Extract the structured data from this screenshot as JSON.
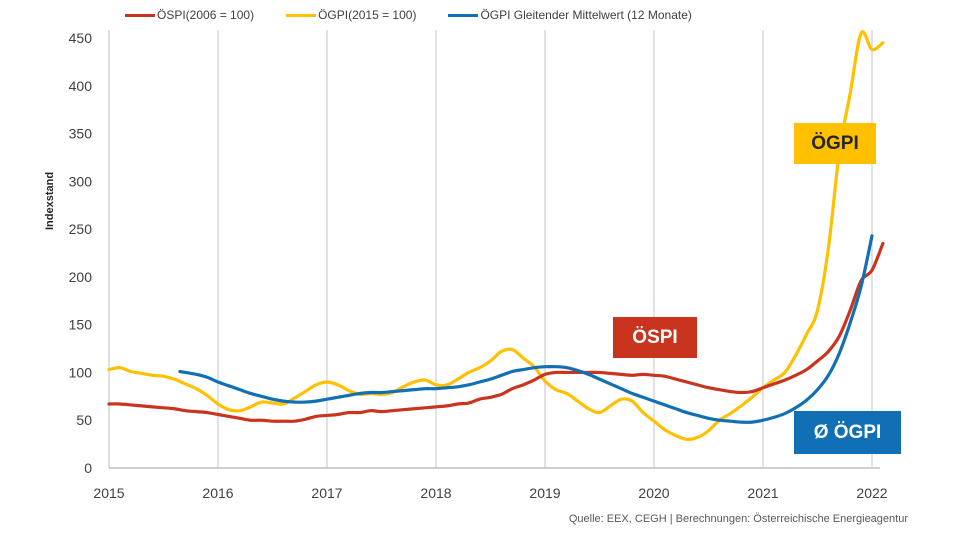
{
  "chart_data": {
    "type": "line",
    "xlim": [
      2015,
      2022
    ],
    "ylim": [
      0,
      450
    ],
    "ylabel": "Indexstand",
    "x_ticks": [
      "2015",
      "2016",
      "2017",
      "2018",
      "2019",
      "2020",
      "2021",
      "2022"
    ],
    "y_ticks": [
      "0",
      "50",
      "100",
      "150",
      "200",
      "250",
      "300",
      "350",
      "400",
      "450"
    ],
    "grid": "vertical at year ticks",
    "legend_position": "top",
    "series": [
      {
        "name": "ÖSPI(2006 = 100)",
        "color": "#C9341E",
        "label": "ÖSPI",
        "points": [
          [
            2015.0,
            67
          ],
          [
            2015.1,
            67
          ],
          [
            2015.2,
            66
          ],
          [
            2015.3,
            65
          ],
          [
            2015.4,
            64
          ],
          [
            2015.5,
            63
          ],
          [
            2015.6,
            62
          ],
          [
            2015.7,
            60
          ],
          [
            2015.8,
            59
          ],
          [
            2015.9,
            58
          ],
          [
            2016.0,
            56
          ],
          [
            2016.1,
            54
          ],
          [
            2016.2,
            52
          ],
          [
            2016.3,
            50
          ],
          [
            2016.4,
            50
          ],
          [
            2016.5,
            49
          ],
          [
            2016.6,
            49
          ],
          [
            2016.7,
            49
          ],
          [
            2016.8,
            51
          ],
          [
            2016.9,
            54
          ],
          [
            2017.0,
            55
          ],
          [
            2017.1,
            56
          ],
          [
            2017.2,
            58
          ],
          [
            2017.3,
            58
          ],
          [
            2017.4,
            60
          ],
          [
            2017.5,
            59
          ],
          [
            2017.6,
            60
          ],
          [
            2017.7,
            61
          ],
          [
            2017.8,
            62
          ],
          [
            2017.9,
            63
          ],
          [
            2018.0,
            64
          ],
          [
            2018.1,
            65
          ],
          [
            2018.2,
            67
          ],
          [
            2018.3,
            68
          ],
          [
            2018.4,
            72
          ],
          [
            2018.5,
            74
          ],
          [
            2018.6,
            77
          ],
          [
            2018.7,
            83
          ],
          [
            2018.8,
            87
          ],
          [
            2018.9,
            92
          ],
          [
            2019.0,
            98
          ],
          [
            2019.1,
            100
          ],
          [
            2019.2,
            100
          ],
          [
            2019.3,
            100
          ],
          [
            2019.4,
            100
          ],
          [
            2019.5,
            100
          ],
          [
            2019.6,
            99
          ],
          [
            2019.7,
            98
          ],
          [
            2019.8,
            97
          ],
          [
            2019.9,
            98
          ],
          [
            2020.0,
            97
          ],
          [
            2020.1,
            96
          ],
          [
            2020.2,
            93
          ],
          [
            2020.3,
            90
          ],
          [
            2020.4,
            87
          ],
          [
            2020.5,
            84
          ],
          [
            2020.6,
            82
          ],
          [
            2020.7,
            80
          ],
          [
            2020.8,
            79
          ],
          [
            2020.9,
            80
          ],
          [
            2021.0,
            84
          ],
          [
            2021.1,
            88
          ],
          [
            2021.2,
            92
          ],
          [
            2021.3,
            97
          ],
          [
            2021.4,
            103
          ],
          [
            2021.5,
            112
          ],
          [
            2021.6,
            122
          ],
          [
            2021.7,
            138
          ],
          [
            2021.8,
            165
          ],
          [
            2021.9,
            196
          ],
          [
            2022.0,
            207
          ],
          [
            2022.1,
            235
          ]
        ]
      },
      {
        "name": "ÖGPI(2015 = 100)",
        "color": "#FFC000",
        "label": "ÖGPI",
        "points": [
          [
            2015.0,
            103
          ],
          [
            2015.1,
            105
          ],
          [
            2015.2,
            101
          ],
          [
            2015.3,
            99
          ],
          [
            2015.4,
            97
          ],
          [
            2015.5,
            96
          ],
          [
            2015.6,
            93
          ],
          [
            2015.7,
            88
          ],
          [
            2015.8,
            83
          ],
          [
            2015.9,
            76
          ],
          [
            2016.0,
            67
          ],
          [
            2016.1,
            61
          ],
          [
            2016.2,
            60
          ],
          [
            2016.3,
            64
          ],
          [
            2016.4,
            69
          ],
          [
            2016.5,
            68
          ],
          [
            2016.6,
            67
          ],
          [
            2016.7,
            73
          ],
          [
            2016.8,
            80
          ],
          [
            2016.9,
            87
          ],
          [
            2017.0,
            90
          ],
          [
            2017.1,
            87
          ],
          [
            2017.2,
            81
          ],
          [
            2017.3,
            77
          ],
          [
            2017.4,
            78
          ],
          [
            2017.5,
            77
          ],
          [
            2017.6,
            79
          ],
          [
            2017.7,
            85
          ],
          [
            2017.8,
            90
          ],
          [
            2017.9,
            92
          ],
          [
            2018.0,
            87
          ],
          [
            2018.1,
            87
          ],
          [
            2018.2,
            93
          ],
          [
            2018.3,
            100
          ],
          [
            2018.4,
            105
          ],
          [
            2018.5,
            112
          ],
          [
            2018.6,
            122
          ],
          [
            2018.7,
            124
          ],
          [
            2018.8,
            115
          ],
          [
            2018.9,
            106
          ],
          [
            2019.0,
            91
          ],
          [
            2019.1,
            82
          ],
          [
            2019.2,
            78
          ],
          [
            2019.3,
            70
          ],
          [
            2019.4,
            62
          ],
          [
            2019.5,
            58
          ],
          [
            2019.6,
            65
          ],
          [
            2019.7,
            72
          ],
          [
            2019.8,
            70
          ],
          [
            2019.9,
            58
          ],
          [
            2020.0,
            49
          ],
          [
            2020.1,
            40
          ],
          [
            2020.2,
            34
          ],
          [
            2020.3,
            30
          ],
          [
            2020.4,
            32
          ],
          [
            2020.5,
            39
          ],
          [
            2020.6,
            50
          ],
          [
            2020.7,
            57
          ],
          [
            2020.8,
            65
          ],
          [
            2020.9,
            74
          ],
          [
            2021.0,
            84
          ],
          [
            2021.1,
            92
          ],
          [
            2021.2,
            100
          ],
          [
            2021.3,
            118
          ],
          [
            2021.4,
            140
          ],
          [
            2021.5,
            165
          ],
          [
            2021.6,
            230
          ],
          [
            2021.7,
            330
          ],
          [
            2021.8,
            392
          ],
          [
            2021.9,
            455
          ],
          [
            2022.0,
            438
          ],
          [
            2022.1,
            445
          ]
        ]
      },
      {
        "name": "ÖGPI Gleitender Mittelwert (12 Monate)",
        "color": "#1170B5",
        "label": "Ø ÖGPI",
        "points": [
          [
            2015.65,
            101
          ],
          [
            2015.8,
            98
          ],
          [
            2015.9,
            95
          ],
          [
            2016.0,
            90
          ],
          [
            2016.1,
            86
          ],
          [
            2016.2,
            82
          ],
          [
            2016.3,
            78
          ],
          [
            2016.4,
            75
          ],
          [
            2016.5,
            72
          ],
          [
            2016.6,
            70
          ],
          [
            2016.7,
            69
          ],
          [
            2016.8,
            69
          ],
          [
            2016.9,
            70
          ],
          [
            2017.0,
            72
          ],
          [
            2017.1,
            74
          ],
          [
            2017.2,
            76
          ],
          [
            2017.3,
            78
          ],
          [
            2017.4,
            79
          ],
          [
            2017.5,
            79
          ],
          [
            2017.6,
            80
          ],
          [
            2017.7,
            81
          ],
          [
            2017.8,
            82
          ],
          [
            2017.9,
            83
          ],
          [
            2018.0,
            83
          ],
          [
            2018.1,
            84
          ],
          [
            2018.2,
            85
          ],
          [
            2018.3,
            87
          ],
          [
            2018.4,
            90
          ],
          [
            2018.5,
            93
          ],
          [
            2018.6,
            97
          ],
          [
            2018.7,
            101
          ],
          [
            2018.8,
            103
          ],
          [
            2018.9,
            105
          ],
          [
            2019.0,
            106
          ],
          [
            2019.1,
            106
          ],
          [
            2019.2,
            105
          ],
          [
            2019.3,
            102
          ],
          [
            2019.4,
            98
          ],
          [
            2019.5,
            93
          ],
          [
            2019.6,
            88
          ],
          [
            2019.7,
            83
          ],
          [
            2019.8,
            78
          ],
          [
            2019.9,
            74
          ],
          [
            2020.0,
            70
          ],
          [
            2020.1,
            66
          ],
          [
            2020.2,
            62
          ],
          [
            2020.3,
            58
          ],
          [
            2020.4,
            55
          ],
          [
            2020.5,
            52
          ],
          [
            2020.6,
            50
          ],
          [
            2020.7,
            49
          ],
          [
            2020.8,
            48
          ],
          [
            2020.9,
            48
          ],
          [
            2021.0,
            50
          ],
          [
            2021.1,
            53
          ],
          [
            2021.2,
            57
          ],
          [
            2021.3,
            63
          ],
          [
            2021.4,
            71
          ],
          [
            2021.5,
            82
          ],
          [
            2021.6,
            97
          ],
          [
            2021.7,
            120
          ],
          [
            2021.8,
            152
          ],
          [
            2021.9,
            190
          ],
          [
            2022.0,
            243
          ]
        ]
      }
    ]
  },
  "source": "Quelle: EEX, CEGH | Berechnungen: Österreichische Energieagentur"
}
